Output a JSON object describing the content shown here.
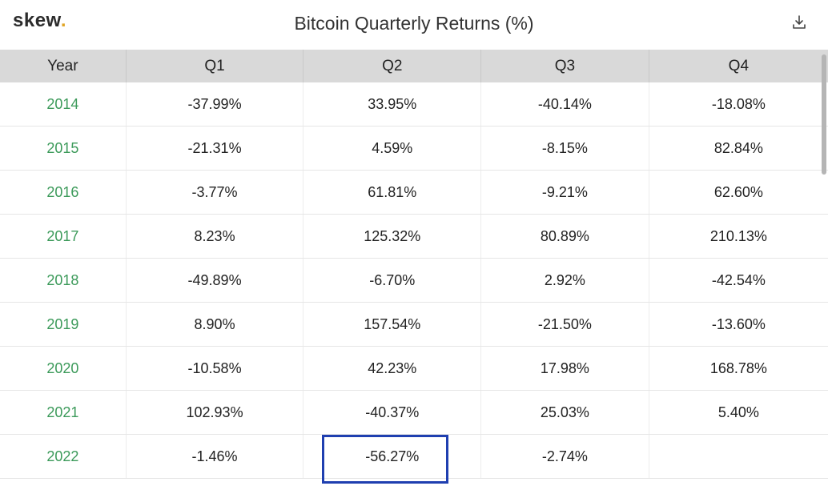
{
  "header": {
    "logo_text": "skew",
    "logo_dot": ".",
    "title": "Bitcoin Quarterly Returns (%)",
    "download_icon": "download-icon"
  },
  "table": {
    "columns": [
      "Year",
      "Q1",
      "Q2",
      "Q3",
      "Q4"
    ],
    "rows": [
      {
        "year": "2014",
        "q1": "-37.99%",
        "q2": "33.95%",
        "q3": "-40.14%",
        "q4": "-18.08%"
      },
      {
        "year": "2015",
        "q1": "-21.31%",
        "q2": "4.59%",
        "q3": "-8.15%",
        "q4": "82.84%"
      },
      {
        "year": "2016",
        "q1": "-3.77%",
        "q2": "61.81%",
        "q3": "-9.21%",
        "q4": "62.60%"
      },
      {
        "year": "2017",
        "q1": "8.23%",
        "q2": "125.32%",
        "q3": "80.89%",
        "q4": "210.13%"
      },
      {
        "year": "2018",
        "q1": "-49.89%",
        "q2": "-6.70%",
        "q3": "2.92%",
        "q4": "-42.54%"
      },
      {
        "year": "2019",
        "q1": "8.90%",
        "q2": "157.54%",
        "q3": "-21.50%",
        "q4": "-13.60%"
      },
      {
        "year": "2020",
        "q1": "-10.58%",
        "q2": "42.23%",
        "q3": "17.98%",
        "q4": "168.78%"
      },
      {
        "year": "2021",
        "q1": "102.93%",
        "q2": "-40.37%",
        "q3": "25.03%",
        "q4": "5.40%"
      },
      {
        "year": "2022",
        "q1": "-1.46%",
        "q2": "-56.27%",
        "q3": "-2.74%",
        "q4": ""
      }
    ]
  },
  "colors": {
    "year_text": "#3c9a5a",
    "header_bg": "#d9d9d9",
    "highlight_border": "#1f3fb0",
    "logo_dot": "#e0a526"
  }
}
